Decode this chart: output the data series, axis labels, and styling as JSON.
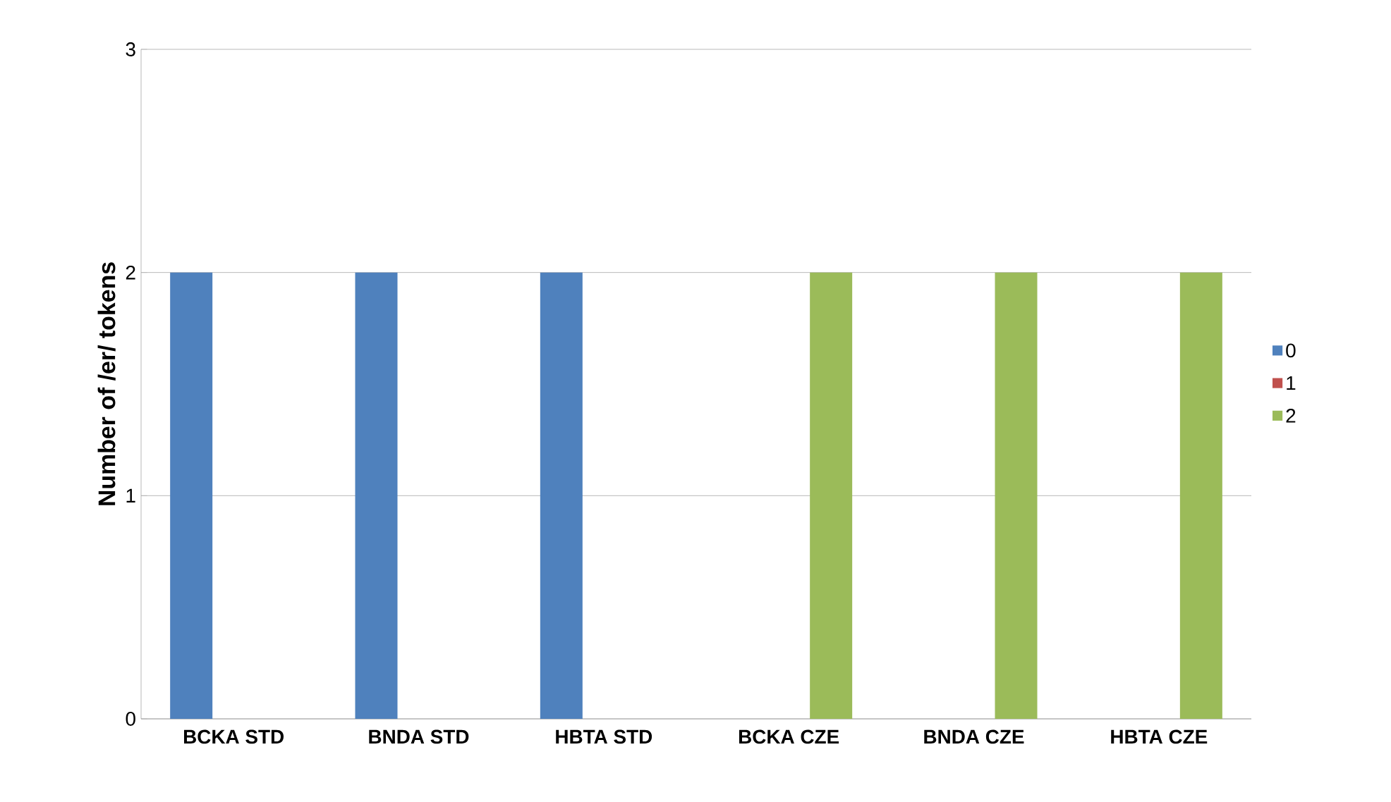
{
  "chart_data": {
    "type": "bar",
    "ylabel": "Number of /er/ tokens",
    "categories": [
      "BCKA STD",
      "BNDA STD",
      "HBTA STD",
      "BCKA CZE",
      "BNDA CZE",
      "HBTA CZE"
    ],
    "series": [
      {
        "name": "0",
        "color": "#4f81bd",
        "values": [
          2,
          2,
          2,
          0,
          0,
          0
        ]
      },
      {
        "name": "1",
        "color": "#c0504d",
        "values": [
          0,
          0,
          0,
          0,
          0,
          0
        ]
      },
      {
        "name": "2",
        "color": "#9bbb59",
        "values": [
          0,
          0,
          0,
          2,
          2,
          2
        ]
      }
    ],
    "ylim": [
      0,
      3
    ],
    "yticks": [
      0,
      1,
      2,
      3
    ],
    "grid": "y",
    "legend": "right"
  }
}
